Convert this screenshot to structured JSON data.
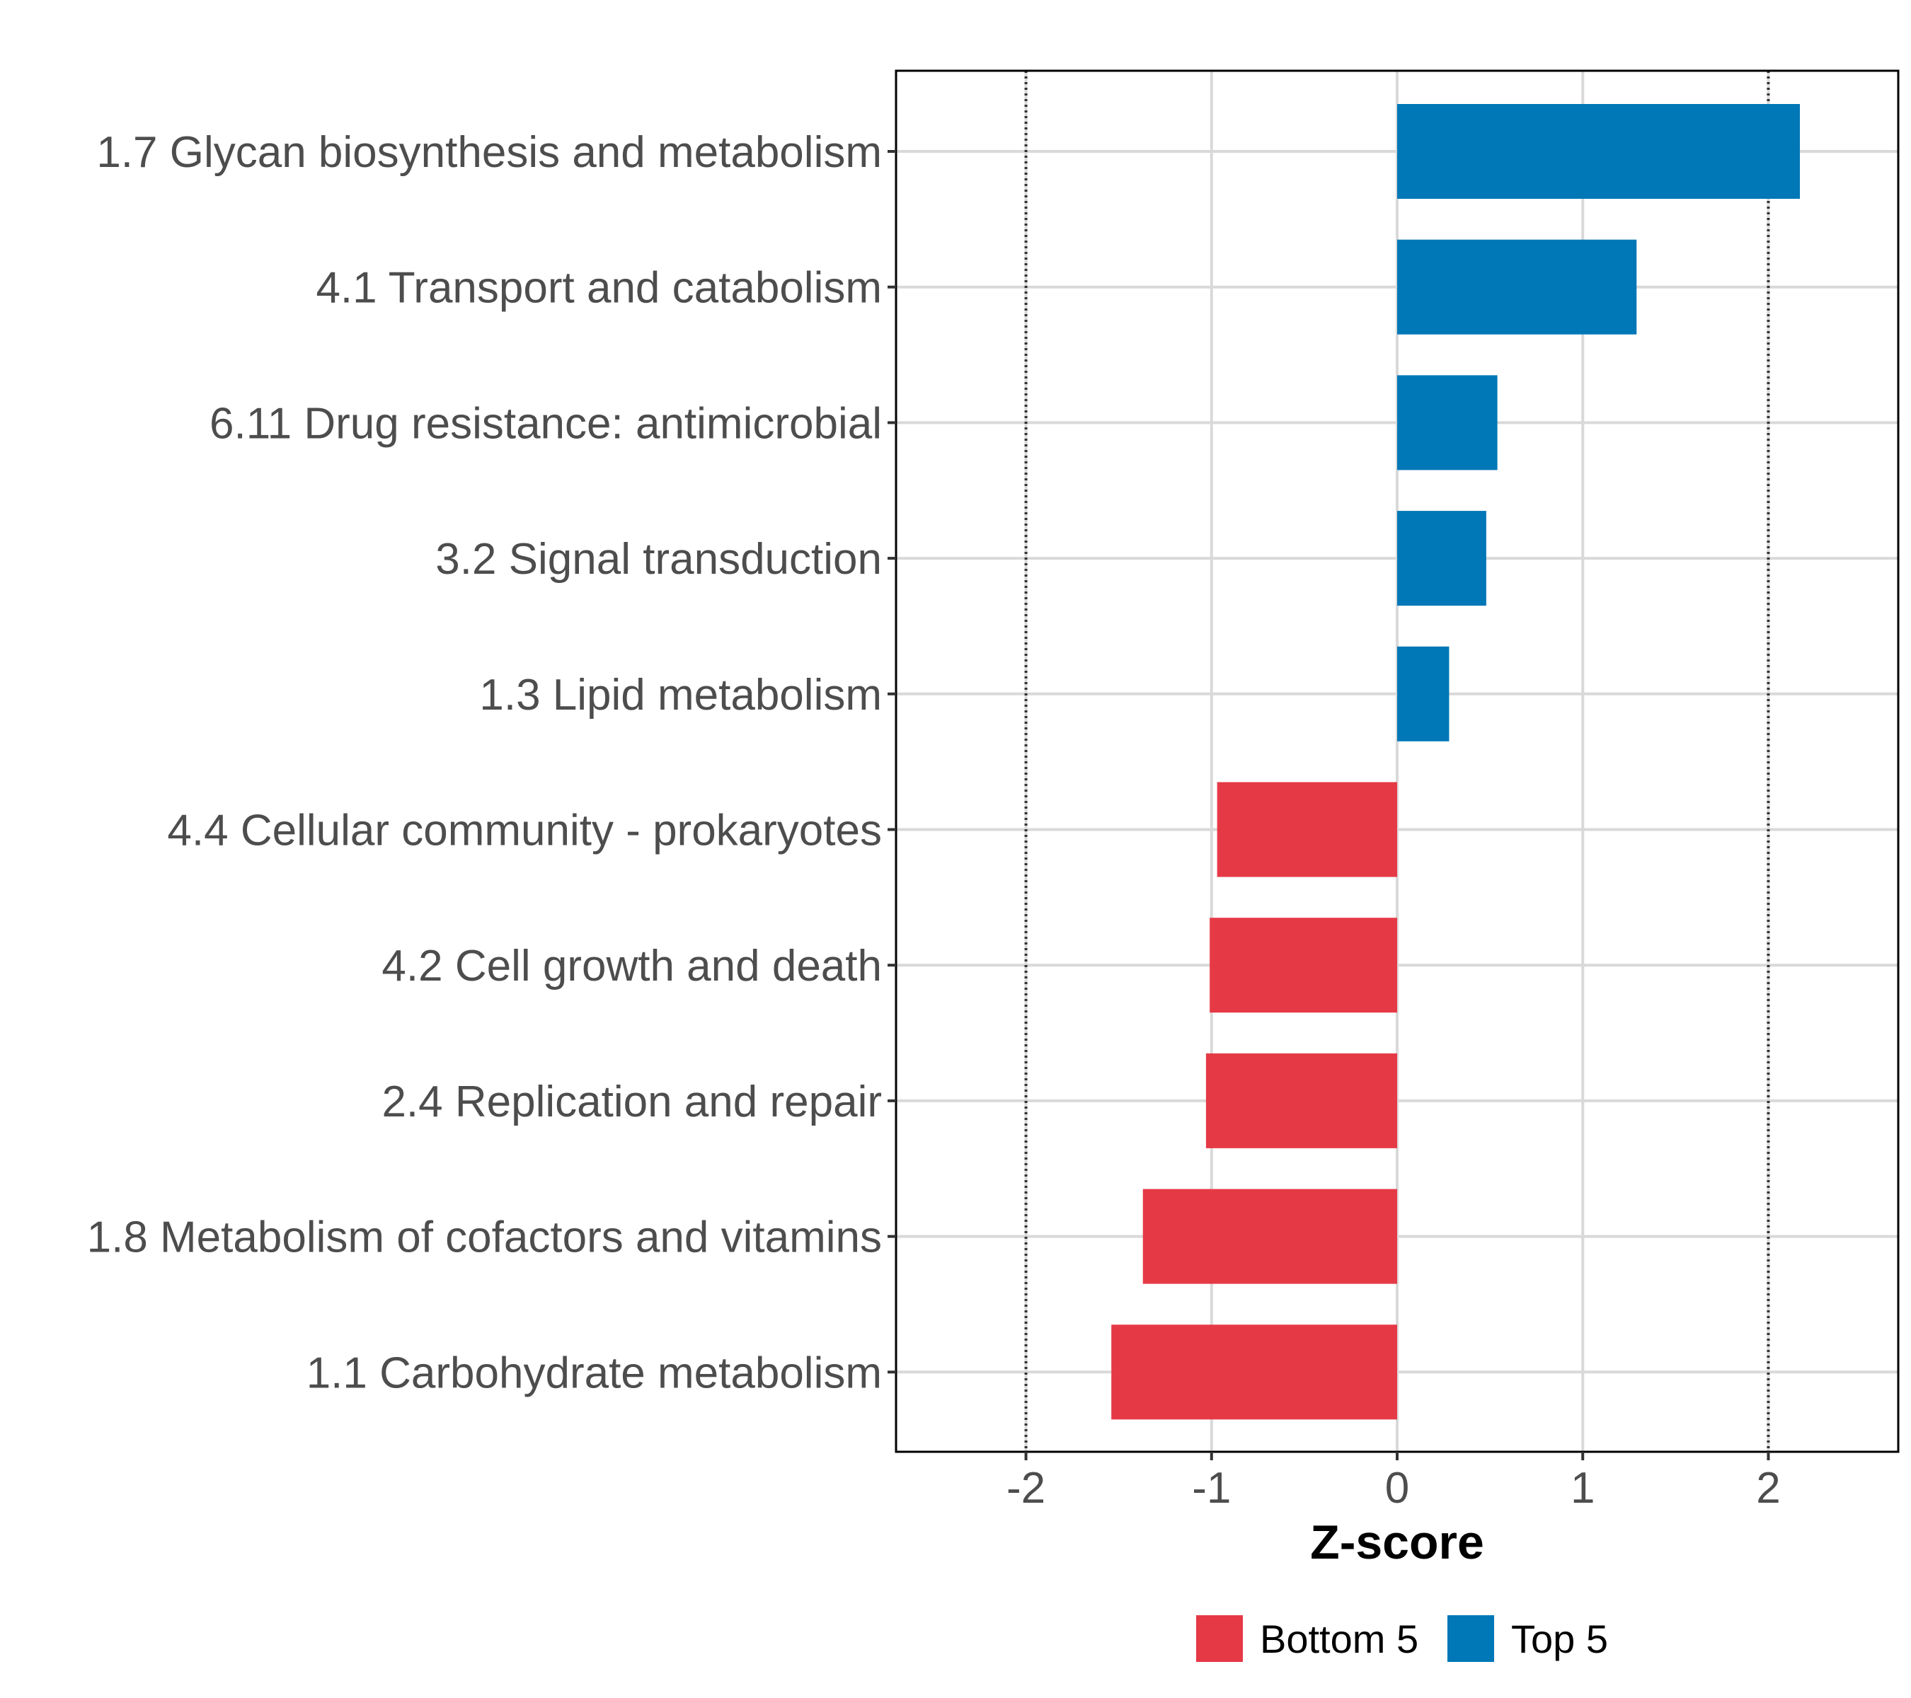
{
  "chart_data": {
    "type": "bar",
    "orientation": "horizontal",
    "title": "",
    "xlabel": "Z-score",
    "ylabel": "",
    "xlim": [
      -2.7,
      2.7
    ],
    "xticks": [
      -2,
      -1,
      0,
      1,
      2
    ],
    "xtick_labels": [
      "-2",
      "-1",
      "0",
      "1",
      "2"
    ],
    "reference_lines": [
      -2,
      2
    ],
    "grid": true,
    "categories": [
      "1.7 Glycan biosynthesis and metabolism",
      "4.1 Transport and catabolism",
      "6.11 Drug resistance: antimicrobial",
      "3.2 Signal transduction",
      "1.3 Lipid metabolism",
      "4.4 Cellular community - prokaryotes",
      "4.2 Cell growth and death",
      "2.4 Replication and repair",
      "1.8 Metabolism of cofactors and vitamins",
      "1.1 Carbohydrate metabolism"
    ],
    "values": [
      2.17,
      1.29,
      0.54,
      0.48,
      0.28,
      -0.97,
      -1.01,
      -1.03,
      -1.37,
      -1.54
    ],
    "groups": [
      "Top 5",
      "Top 5",
      "Top 5",
      "Top 5",
      "Top 5",
      "Bottom 5",
      "Bottom 5",
      "Bottom 5",
      "Bottom 5",
      "Bottom 5"
    ],
    "legend": {
      "position": "bottom",
      "entries": [
        {
          "label": "Bottom 5",
          "color": "#e63946"
        },
        {
          "label": "Top 5",
          "color": "#0077b6"
        }
      ]
    }
  }
}
